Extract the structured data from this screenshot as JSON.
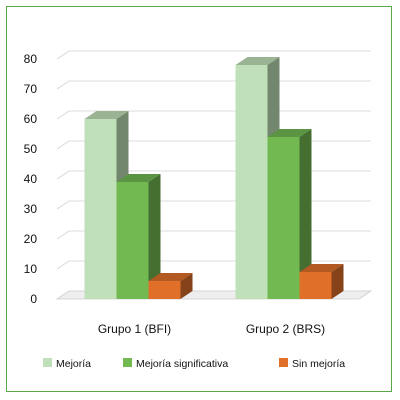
{
  "chart_data": {
    "type": "bar",
    "title": "",
    "xlabel": "",
    "ylabel": "",
    "ylim": [
      0,
      80
    ],
    "yticks": [
      0,
      10,
      20,
      30,
      40,
      50,
      60,
      70,
      80
    ],
    "categories": [
      "Grupo 1 (BFI)",
      "Grupo 2 (BRS)"
    ],
    "series": [
      {
        "name": "Mejoría",
        "values": [
          60,
          78
        ],
        "color": "#bfe0b8"
      },
      {
        "name": "Mejoría significativa",
        "values": [
          39,
          54
        ],
        "color": "#72b952"
      },
      {
        "name": "Sin mejoría",
        "values": [
          6,
          9
        ],
        "color": "#e06f2a"
      }
    ],
    "grid": true,
    "style": "3d",
    "legend_position": "bottom"
  }
}
